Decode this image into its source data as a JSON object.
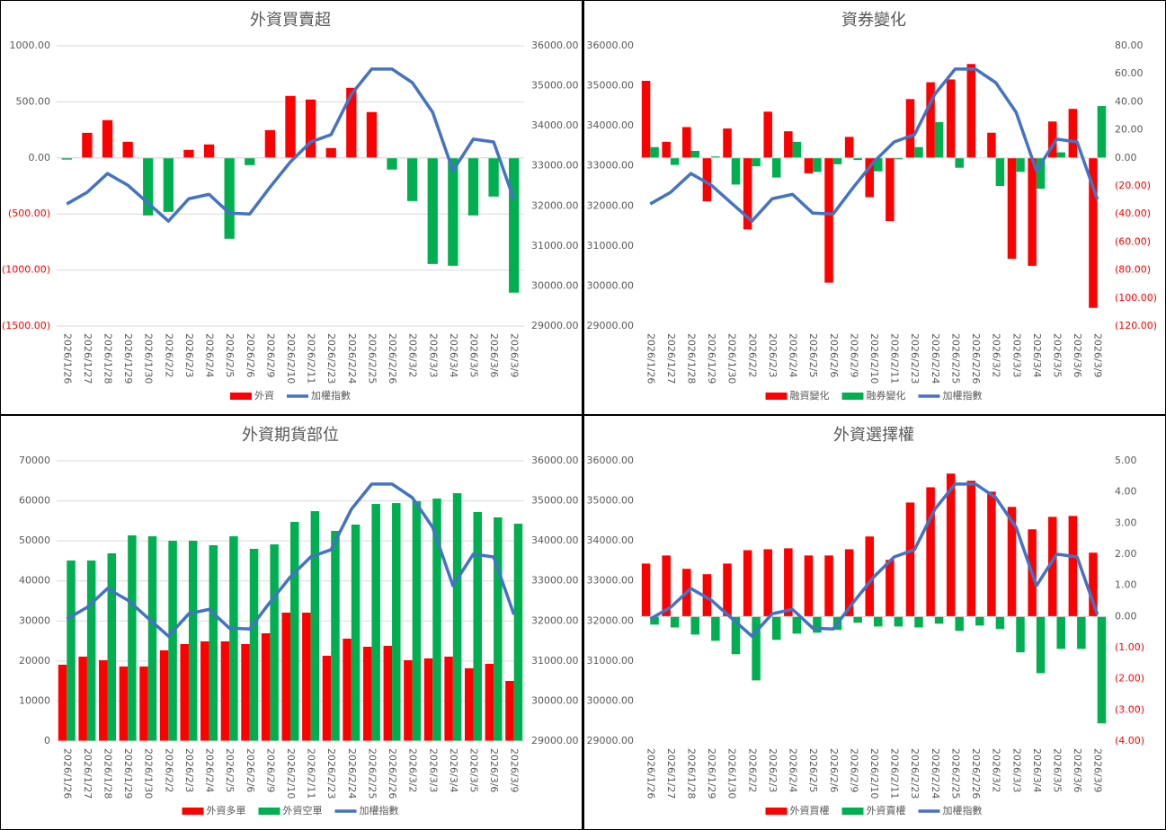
{
  "chart_data": [
    {
      "type": "bar_line",
      "title": "外資買賣超",
      "categories": [
        "2026/1/26",
        "2026/1/27",
        "2026/1/28",
        "2026/1/29",
        "2026/1/30",
        "2026/2/2",
        "2026/2/3",
        "2026/2/4",
        "2026/2/5",
        "2026/2/6",
        "2026/2/9",
        "2026/2/10",
        "2026/2/11",
        "2026/2/23",
        "2026/2/24",
        "2026/2/25",
        "2026/2/26",
        "2026/3/2",
        "2026/3/3",
        "2026/3/4",
        "2026/3/5",
        "2026/3/6",
        "2026/3/9"
      ],
      "series": [
        {
          "name": "外資",
          "type": "bar",
          "axis": "y",
          "color": "#ff0000",
          "negative_color": "#00b050",
          "values": [
            -15,
            224,
            337,
            144,
            -513,
            -481,
            72,
            120,
            -721,
            -64,
            248,
            553,
            521,
            88,
            625,
            409,
            -104,
            -385,
            -946,
            -962,
            -513,
            -345,
            -1202
          ]
        },
        {
          "name": "加權指數",
          "type": "line",
          "axis": "y2",
          "color": "#4472c4",
          "values": [
            32050,
            32340,
            32810,
            32520,
            32070,
            31620,
            32180,
            32290,
            31820,
            31800,
            32470,
            33100,
            33600,
            33780,
            34790,
            35420,
            35420,
            35080,
            34340,
            32880,
            33670,
            33600,
            32160
          ]
        }
      ],
      "ylim": [
        -1500,
        1000
      ],
      "yticks": [
        {
          "value": 1000,
          "label": "1000.00"
        },
        {
          "value": 500,
          "label": "500.00"
        },
        {
          "value": 0,
          "label": "0.00"
        },
        {
          "value": -500,
          "label": "(500.00)"
        },
        {
          "value": -1000,
          "label": "(1000.00)"
        },
        {
          "value": -1500,
          "label": "(1500.00)"
        }
      ],
      "y2lim": [
        29000,
        36000
      ],
      "y2ticks": [
        {
          "value": 36000,
          "label": "36000.00"
        },
        {
          "value": 35000,
          "label": "35000.00"
        },
        {
          "value": 34000,
          "label": "34000.00"
        },
        {
          "value": 33000,
          "label": "33000.00"
        },
        {
          "value": 32000,
          "label": "32000.00"
        },
        {
          "value": 31000,
          "label": "31000.00"
        },
        {
          "value": 30000,
          "label": "30000.00"
        },
        {
          "value": 29000,
          "label": "29000.00"
        }
      ],
      "grid": true,
      "negative_tick_color": "#ff0000",
      "legend": "bottom"
    },
    {
      "type": "bar_line",
      "title": "資券變化",
      "categories": [
        "2026/1/26",
        "2026/1/27",
        "2026/1/28",
        "2026/1/29",
        "2026/1/30",
        "2026/2/2",
        "2026/2/3",
        "2026/2/4",
        "2026/2/5",
        "2026/2/6",
        "2026/2/9",
        "2026/2/10",
        "2026/2/11",
        "2026/2/23",
        "2026/2/24",
        "2026/2/25",
        "2026/2/26",
        "2026/3/2",
        "2026/3/3",
        "2026/3/4",
        "2026/3/5",
        "2026/3/6",
        "2026/3/9"
      ],
      "series": [
        {
          "name": "融資變化",
          "type": "bar",
          "axis": "y2",
          "color": "#ff0000",
          "values": [
            55,
            11.5,
            22,
            -31,
            21,
            -51,
            33,
            19,
            -11,
            -89,
            15,
            -28,
            -45,
            42,
            54,
            56,
            67,
            18,
            -72,
            -77,
            26,
            35,
            -107
          ]
        },
        {
          "name": "融券變化",
          "type": "bar",
          "axis": "y2",
          "color": "#00b050",
          "values": [
            7.7,
            -5,
            5,
            1,
            -19,
            -6,
            -14,
            11.5,
            -10,
            -4.5,
            -1.5,
            -9.6,
            -1,
            7.7,
            25.6,
            -7,
            0,
            -20,
            -10,
            -22,
            4,
            0,
            37
          ]
        },
        {
          "name": "加權指數",
          "type": "line",
          "axis": "y",
          "color": "#4472c4",
          "values": [
            32050,
            32340,
            32810,
            32520,
            32070,
            31620,
            32180,
            32290,
            31820,
            31800,
            32470,
            33100,
            33600,
            33780,
            34790,
            35420,
            35420,
            35080,
            34340,
            32880,
            33670,
            33600,
            32160
          ]
        }
      ],
      "ylim": [
        29000,
        36000
      ],
      "yticks": [
        {
          "value": 36000,
          "label": "36000.00"
        },
        {
          "value": 35000,
          "label": "35000.00"
        },
        {
          "value": 34000,
          "label": "34000.00"
        },
        {
          "value": 33000,
          "label": "33000.00"
        },
        {
          "value": 32000,
          "label": "32000.00"
        },
        {
          "value": 31000,
          "label": "31000.00"
        },
        {
          "value": 30000,
          "label": "30000.00"
        },
        {
          "value": 29000,
          "label": "29000.00"
        }
      ],
      "y2lim": [
        -120,
        80
      ],
      "y2ticks": [
        {
          "value": 80,
          "label": "80.00"
        },
        {
          "value": 60,
          "label": "60.00"
        },
        {
          "value": 40,
          "label": "40.00"
        },
        {
          "value": 20,
          "label": "20.00"
        },
        {
          "value": 0,
          "label": "0.00"
        },
        {
          "value": -20,
          "label": "(20.00)"
        },
        {
          "value": -40,
          "label": "(40.00)"
        },
        {
          "value": -60,
          "label": "(60.00)"
        },
        {
          "value": -80,
          "label": "(80.00)"
        },
        {
          "value": -100,
          "label": "(100.00)"
        },
        {
          "value": -120,
          "label": "(120.00)"
        }
      ],
      "grid": false,
      "negative_tick_color": "#ff0000",
      "legend": "bottom"
    },
    {
      "type": "bar_line",
      "title": "外資期貨部位",
      "categories": [
        "2026/1/26",
        "2026/1/27",
        "2026/1/28",
        "2026/1/29",
        "2026/1/30",
        "2026/2/2",
        "2026/2/3",
        "2026/2/4",
        "2026/2/5",
        "2026/2/6",
        "2026/2/9",
        "2026/2/10",
        "2026/2/11",
        "2026/2/23",
        "2026/2/24",
        "2026/2/25",
        "2026/2/26",
        "2026/3/2",
        "2026/3/3",
        "2026/3/4",
        "2026/3/5",
        "2026/3/6",
        "2026/3/9"
      ],
      "series": [
        {
          "name": "外資多單",
          "type": "bar",
          "axis": "y",
          "color": "#ff0000",
          "values": [
            19070,
            21090,
            20190,
            18620,
            18620,
            22660,
            24230,
            24900,
            24900,
            24230,
            26920,
            32080,
            32080,
            21310,
            25580,
            23560,
            23790,
            20190,
            20640,
            21090,
            18170,
            19300,
            15030
          ]
        },
        {
          "name": "外資空單",
          "type": "bar",
          "axis": "y",
          "color": "#00b050",
          "values": [
            45100,
            45100,
            46890,
            51380,
            51150,
            50030,
            50030,
            48910,
            51150,
            48010,
            49130,
            54740,
            57430,
            52500,
            54070,
            59220,
            59440,
            59890,
            60570,
            61910,
            57210,
            55870,
            54300
          ]
        },
        {
          "name": "加權指數",
          "type": "line",
          "axis": "y2",
          "color": "#4472c4",
          "values": [
            32050,
            32340,
            32810,
            32520,
            32070,
            31620,
            32180,
            32290,
            31820,
            31800,
            32470,
            33100,
            33600,
            33780,
            34790,
            35420,
            35420,
            35080,
            34340,
            32880,
            33670,
            33600,
            32160
          ]
        }
      ],
      "ylim": [
        0,
        70000
      ],
      "yticks": [
        70000,
        60000,
        50000,
        40000,
        30000,
        20000,
        10000,
        0
      ],
      "y2lim": [
        29000,
        36000
      ],
      "y2ticks": [
        {
          "value": 36000,
          "label": "36000.00"
        },
        {
          "value": 35000,
          "label": "35000.00"
        },
        {
          "value": 34000,
          "label": "34000.00"
        },
        {
          "value": 33000,
          "label": "33000.00"
        },
        {
          "value": 32000,
          "label": "32000.00"
        },
        {
          "value": 31000,
          "label": "31000.00"
        },
        {
          "value": 30000,
          "label": "30000.00"
        },
        {
          "value": 29000,
          "label": "29000.00"
        }
      ],
      "grid": true,
      "negative_tick_color": "#ff0000",
      "legend": "bottom"
    },
    {
      "type": "bar_line",
      "title": "外資選擇權",
      "categories": [
        "2026/1/26",
        "2026/1/27",
        "2026/1/28",
        "2026/1/29",
        "2026/1/30",
        "2026/2/2",
        "2026/2/3",
        "2026/2/4",
        "2026/2/5",
        "2026/2/6",
        "2026/2/9",
        "2026/2/10",
        "2026/2/11",
        "2026/2/23",
        "2026/2/24",
        "2026/2/25",
        "2026/2/26",
        "2026/3/2",
        "2026/3/3",
        "2026/3/4",
        "2026/3/5",
        "2026/3/6",
        "2026/3/9"
      ],
      "series": [
        {
          "name": "外資買權",
          "type": "bar",
          "axis": "y2",
          "color": "#ff0000",
          "values": [
            1.7,
            1.96,
            1.53,
            1.36,
            1.7,
            2.13,
            2.16,
            2.19,
            1.96,
            1.96,
            2.16,
            2.57,
            1.82,
            3.66,
            4.15,
            4.59,
            4.36,
            4.01,
            3.52,
            2.8,
            3.2,
            3.23,
            2.05
          ]
        },
        {
          "name": "外資賣權",
          "type": "bar",
          "axis": "y2",
          "color": "#00b050",
          "values": [
            -0.26,
            -0.35,
            -0.58,
            -0.78,
            -1.21,
            -2.05,
            -0.75,
            -0.55,
            -0.52,
            -0.43,
            -0.2,
            -0.32,
            -0.32,
            -0.35,
            -0.23,
            -0.46,
            -0.29,
            -0.4,
            -1.15,
            -1.82,
            -1.04,
            -1.04,
            -3.43
          ]
        },
        {
          "name": "加權指數",
          "type": "line",
          "axis": "y",
          "color": "#4472c4",
          "values": [
            32050,
            32340,
            32810,
            32520,
            32070,
            31620,
            32180,
            32290,
            31820,
            31800,
            32470,
            33100,
            33600,
            33780,
            34790,
            35420,
            35420,
            35080,
            34340,
            32880,
            33670,
            33600,
            32160
          ]
        }
      ],
      "ylim": [
        29000,
        36000
      ],
      "yticks": [
        {
          "value": 36000,
          "label": "36000.00"
        },
        {
          "value": 35000,
          "label": "35000.00"
        },
        {
          "value": 34000,
          "label": "34000.00"
        },
        {
          "value": 33000,
          "label": "33000.00"
        },
        {
          "value": 32000,
          "label": "32000.00"
        },
        {
          "value": 31000,
          "label": "31000.00"
        },
        {
          "value": 30000,
          "label": "30000.00"
        },
        {
          "value": 29000,
          "label": "29000.00"
        }
      ],
      "y2lim": [
        -4,
        5
      ],
      "y2ticks": [
        {
          "value": 5,
          "label": "5.00"
        },
        {
          "value": 4,
          "label": "4.00"
        },
        {
          "value": 3,
          "label": "3.00"
        },
        {
          "value": 2,
          "label": "2.00"
        },
        {
          "value": 1,
          "label": "1.00"
        },
        {
          "value": 0,
          "label": "0.00"
        },
        {
          "value": -1,
          "label": "(1.00)"
        },
        {
          "value": -2,
          "label": "(2.00)"
        },
        {
          "value": -3,
          "label": "(3.00)"
        },
        {
          "value": -4,
          "label": "(4.00)"
        }
      ],
      "grid": false,
      "negative_tick_color": "#ff0000",
      "legend": "bottom"
    }
  ]
}
